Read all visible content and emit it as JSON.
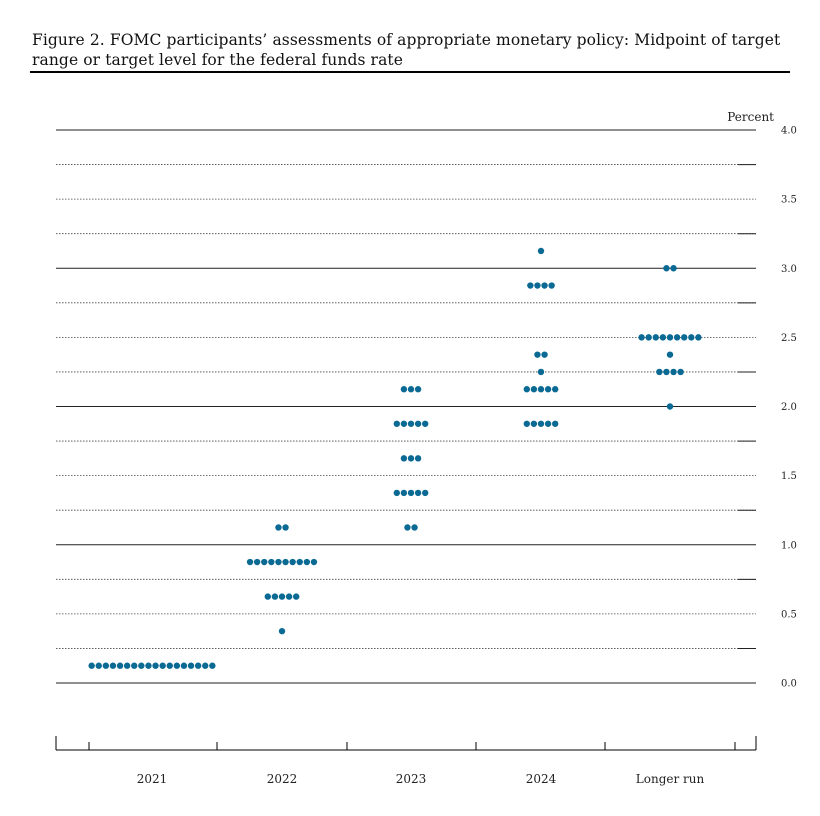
{
  "figure": {
    "title": "Figure 2.  FOMC participants’ assessments of appropriate monetary policy: Midpoint of target range or target level for the federal funds rate"
  },
  "chart_data": {
    "type": "scatter",
    "subtype": "dot-plot",
    "title": "Figure 2.  FOMC participants’ assessments of appropriate monetary policy: Midpoint of target range or target level for the federal funds rate",
    "xlabel": "",
    "ylabel": "Percent",
    "ylim": [
      0,
      4
    ],
    "yticks": [
      "4.0",
      "3.5",
      "3.0",
      "2.5",
      "2.0",
      "1.5",
      "1.0",
      "0.5",
      "0.0"
    ],
    "grid": true,
    "dot_color": "#0b6a94",
    "categories": [
      "2021",
      "2022",
      "2023",
      "2024",
      "Longer run"
    ],
    "points": [
      {
        "category": "2021",
        "y": 0.125,
        "count": 18
      },
      {
        "category": "2022",
        "y": 1.125,
        "count": 2
      },
      {
        "category": "2022",
        "y": 0.875,
        "count": 10
      },
      {
        "category": "2022",
        "y": 0.625,
        "count": 5
      },
      {
        "category": "2022",
        "y": 0.375,
        "count": 1
      },
      {
        "category": "2023",
        "y": 2.125,
        "count": 3
      },
      {
        "category": "2023",
        "y": 1.875,
        "count": 5
      },
      {
        "category": "2023",
        "y": 1.625,
        "count": 3
      },
      {
        "category": "2023",
        "y": 1.375,
        "count": 5
      },
      {
        "category": "2023",
        "y": 1.125,
        "count": 2
      },
      {
        "category": "2024",
        "y": 3.125,
        "count": 1
      },
      {
        "category": "2024",
        "y": 2.875,
        "count": 4
      },
      {
        "category": "2024",
        "y": 2.375,
        "count": 2
      },
      {
        "category": "2024",
        "y": 2.25,
        "count": 1
      },
      {
        "category": "2024",
        "y": 2.125,
        "count": 5
      },
      {
        "category": "2024",
        "y": 1.875,
        "count": 5
      },
      {
        "category": "Longer run",
        "y": 3.0,
        "count": 2
      },
      {
        "category": "Longer run",
        "y": 2.5,
        "count": 9
      },
      {
        "category": "Longer run",
        "y": 2.375,
        "count": 1
      },
      {
        "category": "Longer run",
        "y": 2.25,
        "count": 4
      },
      {
        "category": "Longer run",
        "y": 2.0,
        "count": 1
      }
    ]
  }
}
